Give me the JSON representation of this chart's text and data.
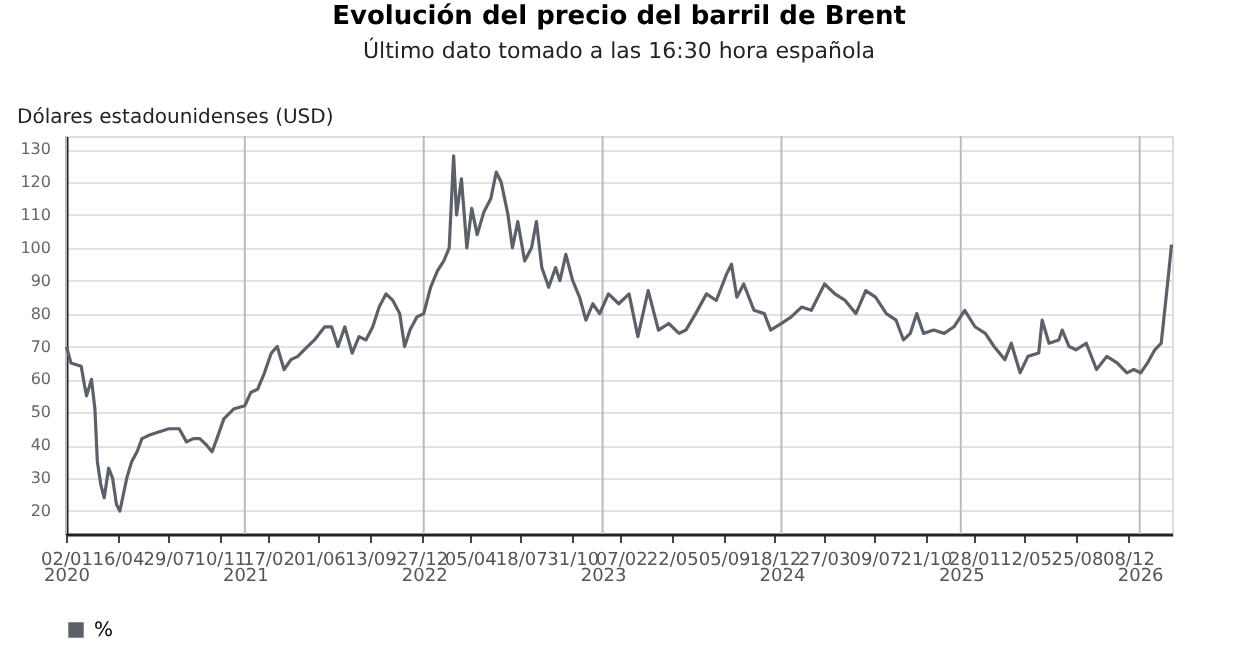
{
  "chart_data": {
    "type": "line",
    "title": "Evolución del precio del barril de Brent",
    "subtitle": "Último dato tomado a las 16:30 hora española",
    "ylabel": "Dólares estadounidenses (USD)",
    "xlim": [
      "2020-01-02",
      "2026-03-08"
    ],
    "ylim": [
      13,
      134
    ],
    "yticks": [
      20,
      30,
      40,
      50,
      60,
      70,
      80,
      90,
      100,
      110,
      120,
      130
    ],
    "xticks": [
      {
        "value": "2020-01-02",
        "label": "02/01"
      },
      {
        "value": "2020-04-16",
        "label": "16/04"
      },
      {
        "value": "2020-07-29",
        "label": "29/07"
      },
      {
        "value": "2020-11-10",
        "label": "10/11"
      },
      {
        "value": "2021-02-17",
        "label": "17/02"
      },
      {
        "value": "2021-06-01",
        "label": "01/06"
      },
      {
        "value": "2021-09-13",
        "label": "13/09"
      },
      {
        "value": "2021-12-27",
        "label": "27/12"
      },
      {
        "value": "2022-04-05",
        "label": "05/04"
      },
      {
        "value": "2022-07-18",
        "label": "18/07"
      },
      {
        "value": "2022-10-31",
        "label": "31/10"
      },
      {
        "value": "2023-02-07",
        "label": "07/02"
      },
      {
        "value": "2023-05-22",
        "label": "22/05"
      },
      {
        "value": "2023-09-05",
        "label": "05/09"
      },
      {
        "value": "2023-12-18",
        "label": "18/12"
      },
      {
        "value": "2024-03-27",
        "label": "27/03"
      },
      {
        "value": "2024-07-09",
        "label": "09/07"
      },
      {
        "value": "2024-10-21",
        "label": "21/10"
      },
      {
        "value": "2025-01-28",
        "label": "28/01"
      },
      {
        "value": "2025-05-12",
        "label": "12/05"
      },
      {
        "value": "2025-08-25",
        "label": "25/08"
      },
      {
        "value": "2025-12-08",
        "label": "08/12"
      }
    ],
    "x2lim": [
      "2020-01-02",
      "2026-03-08"
    ],
    "x2ticks": [
      {
        "value": "2020-01-02",
        "label": "2020"
      },
      {
        "value": "2021-01-01",
        "label": "2021"
      },
      {
        "value": "2022-01-01",
        "label": "2022"
      },
      {
        "value": "2023-01-01",
        "label": "2023"
      },
      {
        "value": "2024-01-01",
        "label": "2024"
      },
      {
        "value": "2025-01-01",
        "label": "2025"
      },
      {
        "value": "2026-01-01",
        "label": "2026"
      }
    ],
    "grid": true,
    "legend": "bottom",
    "line_style": "solid",
    "marker": "none",
    "x": [
      "2020-01-03",
      "2020-01-12",
      "2020-02-02",
      "2020-02-09",
      "2020-02-13",
      "2020-02-23",
      "2020-03-01",
      "2020-03-06",
      "2020-03-13",
      "2020-03-20",
      "2020-03-29",
      "2020-04-06",
      "2020-04-14",
      "2020-04-21",
      "2020-04-28",
      "2020-05-05",
      "2020-05-15",
      "2020-05-26",
      "2020-06-05",
      "2020-06-19",
      "2020-07-09",
      "2020-07-30",
      "2020-08-20",
      "2020-09-04",
      "2020-09-18",
      "2020-10-01",
      "2020-10-15",
      "2020-10-26",
      "2020-11-05",
      "2020-11-19",
      "2020-12-09",
      "2021-01-01",
      "2021-01-13",
      "2021-01-27",
      "2021-02-10",
      "2021-02-24",
      "2021-03-08",
      "2021-03-22",
      "2021-04-05",
      "2021-04-19",
      "2021-05-02",
      "2021-05-23",
      "2021-06-13",
      "2021-06-27",
      "2021-07-10",
      "2021-07-24",
      "2021-08-08",
      "2021-08-22",
      "2021-09-05",
      "2021-09-19",
      "2021-10-02",
      "2021-10-16",
      "2021-10-30",
      "2021-11-13",
      "2021-11-23",
      "2021-12-04",
      "2021-12-18",
      "2022-01-01",
      "2022-01-15",
      "2022-01-29",
      "2022-02-11",
      "2022-02-22",
      "2022-03-03",
      "2022-03-09",
      "2022-03-19",
      "2022-03-30",
      "2022-04-09",
      "2022-04-20",
      "2022-05-04",
      "2022-05-18",
      "2022-05-29",
      "2022-06-08",
      "2022-06-22",
      "2022-07-01",
      "2022-07-12",
      "2022-07-26",
      "2022-08-09",
      "2022-08-19",
      "2022-08-30",
      "2022-09-13",
      "2022-09-27",
      "2022-10-06",
      "2022-10-18",
      "2022-11-01",
      "2022-11-15",
      "2022-11-28",
      "2022-12-12",
      "2022-12-26",
      "2023-01-13",
      "2023-02-03",
      "2023-02-24",
      "2023-03-14",
      "2023-04-04",
      "2023-04-25",
      "2023-05-16",
      "2023-06-06",
      "2023-06-20",
      "2023-07-10",
      "2023-08-01",
      "2023-08-21",
      "2023-09-11",
      "2023-09-21",
      "2023-10-02",
      "2023-10-16",
      "2023-11-06",
      "2023-11-27",
      "2023-12-10",
      "2024-01-01",
      "2024-01-21",
      "2024-02-11",
      "2024-03-02",
      "2024-03-29",
      "2024-04-19",
      "2024-05-10",
      "2024-06-01",
      "2024-06-21",
      "2024-07-11",
      "2024-08-02",
      "2024-08-22",
      "2024-09-06",
      "2024-09-20",
      "2024-10-03",
      "2024-10-17",
      "2024-11-07",
      "2024-11-28",
      "2024-12-18",
      "2025-01-09",
      "2025-01-30",
      "2025-02-20",
      "2025-03-10",
      "2025-04-01",
      "2025-04-14",
      "2025-05-02",
      "2025-05-18",
      "2025-06-09",
      "2025-06-16",
      "2025-06-30",
      "2025-07-20",
      "2025-07-27",
      "2025-08-10",
      "2025-08-24",
      "2025-09-14",
      "2025-10-05",
      "2025-10-26",
      "2025-11-16",
      "2025-12-06",
      "2025-12-20",
      "2026-01-03",
      "2026-01-17",
      "2026-02-01",
      "2026-02-14",
      "2026-02-24",
      "2026-03-01",
      "2026-03-07"
    ],
    "series": [
      {
        "name": "%",
        "color": "#5c6068",
        "values": [
          70,
          65,
          64,
          58,
          55,
          60,
          51,
          35,
          28,
          24,
          33,
          30,
          22,
          20,
          25,
          30,
          35,
          38,
          42,
          43,
          44,
          45,
          45,
          41,
          42,
          42,
          40,
          38,
          42,
          48,
          51,
          52,
          56,
          57,
          62,
          68,
          70,
          63,
          66,
          67,
          69,
          72,
          76,
          76,
          70,
          76,
          68,
          73,
          72,
          76,
          82,
          86,
          84,
          80,
          70,
          75,
          79,
          80,
          88,
          93,
          96,
          100,
          128,
          110,
          121,
          100,
          112,
          104,
          111,
          115,
          123,
          120,
          110,
          100,
          108,
          96,
          100,
          108,
          94,
          88,
          94,
          90,
          98,
          90,
          85,
          78,
          83,
          80,
          86,
          83,
          86,
          73,
          87,
          75,
          77,
          74,
          75,
          80,
          86,
          84,
          92,
          95,
          85,
          89,
          81,
          80,
          75,
          77,
          79,
          82,
          81,
          89,
          86,
          84,
          80,
          87,
          85,
          80,
          78,
          72,
          74,
          80,
          74,
          75,
          74,
          76,
          81,
          76,
          74,
          70,
          66,
          71,
          62,
          67,
          68,
          78,
          71,
          72,
          75,
          70,
          69,
          71,
          63,
          67,
          65,
          62,
          63,
          62,
          65,
          69,
          71,
          85,
          92,
          101
        ]
      }
    ]
  }
}
